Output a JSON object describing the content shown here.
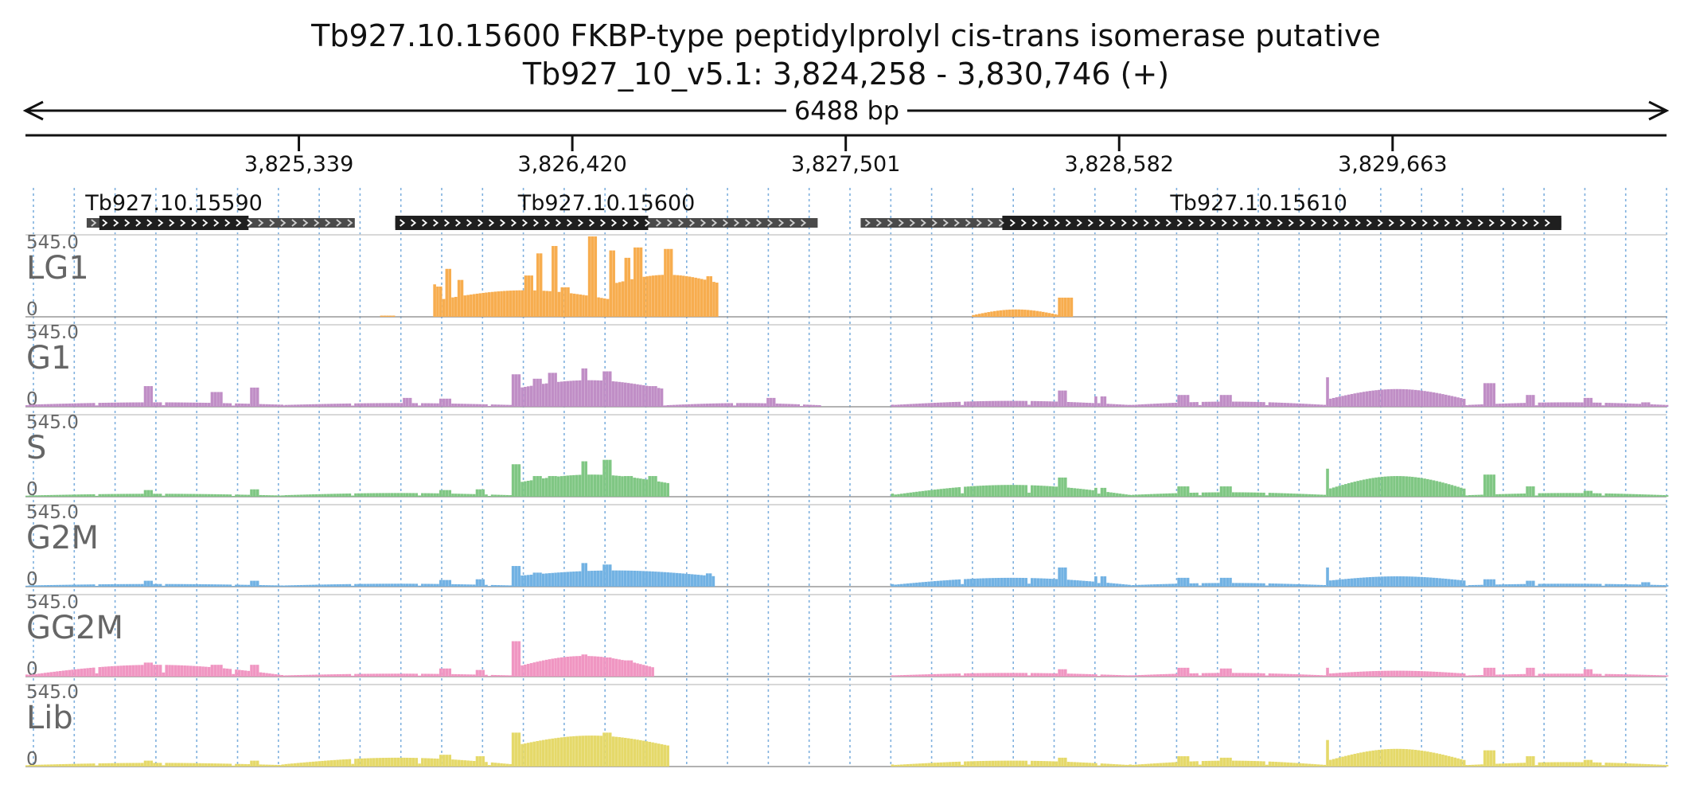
{
  "title": "Tb927.10.15600  FKBP-type peptidylprolyl cis-trans isomerase  putative",
  "subtitle": "Tb927_10_v5.1: 3,824,258 - 3,830,746 (+)",
  "span_label": "6488 bp",
  "colors": {
    "text": "#111111",
    "track_label": "#666666",
    "gene_cds": "#1f1f1f",
    "gene_utr": "#4a4a4a",
    "grid": "#7fb0de",
    "baseline": "#999999"
  },
  "chart_data": {
    "type": "area",
    "region": {
      "start": 3824258,
      "end": 3830746,
      "strand": "+"
    },
    "axis_ticks": [
      {
        "pos": 3825339,
        "label": "3,825,339"
      },
      {
        "pos": 3826420,
        "label": "3,826,420"
      },
      {
        "pos": 3827501,
        "label": "3,827,501"
      },
      {
        "pos": 3828582,
        "label": "3,828,582"
      },
      {
        "pos": 3829663,
        "label": "3,829,663"
      }
    ],
    "genes": [
      {
        "id": "Tb927.10.15590",
        "label": "Tb927.10.15590",
        "start": 3824500,
        "end": 3825560,
        "cds_start": 3824550,
        "cds_end": 3825140
      },
      {
        "id": "Tb927.10.15600",
        "label": "Tb927.10.15600",
        "start": 3825720,
        "end": 3827390,
        "cds_start": 3825720,
        "cds_end": 3826720
      },
      {
        "id": "Tb927.10.15610",
        "label": "Tb927.10.15610",
        "start": 3827560,
        "end": 3830330,
        "cds_start": 3828120,
        "cds_end": 3830330
      }
    ],
    "y_range": [
      0,
      545.0
    ],
    "y_max_label": "545.0",
    "y_min_label": "0",
    "grid": "dotted vertical",
    "tracks": [
      {
        "name": "LG1",
        "color": "#f7ad4f",
        "segments": [
          {
            "start": 3825660,
            "end": 3825720,
            "shape": "flat",
            "lo": 8,
            "hi": 8,
            "edge": 0,
            "gap": 0
          },
          {
            "start": 3825870,
            "end": 3826590,
            "shape": "steps",
            "lo": 110,
            "hi": 180,
            "edge": 220,
            "gap": 0,
            "steps": [
              [
                3825870,
                205
              ],
              [
                3825910,
                325
              ],
              [
                3825960,
                250
              ],
              [
                3826230,
                280
              ],
              [
                3826270,
                430
              ],
              [
                3826330,
                480
              ],
              [
                3826370,
                200
              ],
              [
                3826480,
                550
              ],
              [
                3826560,
                450
              ]
            ]
          },
          {
            "start": 3826590,
            "end": 3826990,
            "shape": "steps",
            "lo": 230,
            "hi": 285,
            "edge": 0,
            "gap": 0,
            "steps": [
              [
                3826620,
                400
              ],
              [
                3826660,
                470
              ],
              [
                3826740,
                270
              ],
              [
                3826780,
                460
              ],
              [
                3826890,
                100
              ],
              [
                3826940,
                275
              ]
            ]
          },
          {
            "start": 3828000,
            "end": 3828340,
            "shape": "hump",
            "lo": 12,
            "hi": 50,
            "edge": 12,
            "gap": 0
          },
          {
            "start": 3828340,
            "end": 3828390,
            "shape": "flat",
            "lo": 130,
            "hi": 130,
            "edge": 130,
            "gap": 0
          }
        ]
      },
      {
        "name": "G1",
        "color": "#c08ec6",
        "segments": [
          {
            "start": 3824258,
            "end": 3825270,
            "shape": "bumps",
            "lo": 14,
            "hi": 30,
            "edge": 30,
            "gap": 40,
            "bumps": [
              [
                3824740,
                140
              ],
              [
                3825010,
                100
              ],
              [
                3825160,
                130
              ]
            ]
          },
          {
            "start": 3825270,
            "end": 3826180,
            "shape": "bumps",
            "lo": 12,
            "hi": 25,
            "edge": 25,
            "gap": 60,
            "bumps": [
              [
                3825760,
                60
              ],
              [
                3825910,
                55
              ]
            ]
          },
          {
            "start": 3826180,
            "end": 3826780,
            "shape": "steps",
            "lo": 120,
            "hi": 180,
            "edge": 200,
            "gap": 0,
            "steps": [
              [
                3826180,
                220
              ],
              [
                3826260,
                190
              ],
              [
                3826320,
                230
              ],
              [
                3826450,
                260
              ],
              [
                3826540,
                240
              ],
              [
                3826620,
                110
              ],
              [
                3826720,
                140
              ]
            ]
          },
          {
            "start": 3826780,
            "end": 3827400,
            "shape": "bumps",
            "lo": 10,
            "hi": 25,
            "edge": 25,
            "gap": 50,
            "bumps": [
              [
                3827200,
                60
              ]
            ]
          },
          {
            "start": 3827680,
            "end": 3828620,
            "shape": "bumps",
            "lo": 12,
            "hi": 40,
            "edge": 40,
            "gap": 40,
            "bumps": [
              [
                3828350,
                110
              ],
              [
                3828500,
                70
              ]
            ]
          },
          {
            "start": 3828620,
            "end": 3829400,
            "shape": "bumps",
            "lo": 12,
            "hi": 35,
            "edge": 35,
            "gap": 60,
            "bumps": [
              [
                3828830,
                80
              ],
              [
                3829000,
                80
              ]
            ]
          },
          {
            "start": 3829400,
            "end": 3829950,
            "shape": "hump",
            "lo": 50,
            "hi": 120,
            "edge": 200,
            "gap": 0
          },
          {
            "start": 3829950,
            "end": 3830746,
            "shape": "bumps",
            "lo": 12,
            "hi": 30,
            "edge": 30,
            "gap": 60,
            "bumps": [
              [
                3830040,
                160
              ],
              [
                3830200,
                80
              ],
              [
                3830430,
                60
              ],
              [
                3830660,
                30
              ]
            ]
          }
        ]
      },
      {
        "name": "S",
        "color": "#80c784",
        "segments": [
          {
            "start": 3824258,
            "end": 3825270,
            "shape": "bumps",
            "lo": 8,
            "hi": 20,
            "edge": 20,
            "gap": 40,
            "bumps": [
              [
                3824740,
                45
              ],
              [
                3825160,
                50
              ]
            ]
          },
          {
            "start": 3825270,
            "end": 3826180,
            "shape": "bumps",
            "lo": 10,
            "hi": 25,
            "edge": 25,
            "gap": 60,
            "bumps": [
              [
                3825910,
                45
              ],
              [
                3826050,
                50
              ]
            ]
          },
          {
            "start": 3826180,
            "end": 3826800,
            "shape": "steps",
            "lo": 90,
            "hi": 150,
            "edge": 200,
            "gap": 0,
            "steps": [
              [
                3826180,
                220
              ],
              [
                3826260,
                140
              ],
              [
                3826320,
                140
              ],
              [
                3826450,
                240
              ],
              [
                3826540,
                250
              ],
              [
                3826620,
                140
              ],
              [
                3826720,
                140
              ]
            ]
          },
          {
            "start": 3827680,
            "end": 3828620,
            "shape": "bumps",
            "lo": 12,
            "hi": 80,
            "edge": 60,
            "gap": 40,
            "bumps": [
              [
                3828350,
                130
              ],
              [
                3828500,
                60
              ]
            ]
          },
          {
            "start": 3828620,
            "end": 3829400,
            "shape": "bumps",
            "lo": 12,
            "hi": 30,
            "edge": 30,
            "gap": 60,
            "bumps": [
              [
                3828830,
                70
              ],
              [
                3829000,
                70
              ]
            ]
          },
          {
            "start": 3829400,
            "end": 3829950,
            "shape": "hump",
            "lo": 50,
            "hi": 140,
            "edge": 190,
            "gap": 0
          },
          {
            "start": 3829950,
            "end": 3830746,
            "shape": "bumps",
            "lo": 10,
            "hi": 25,
            "edge": 25,
            "gap": 60,
            "bumps": [
              [
                3830040,
                150
              ],
              [
                3830200,
                70
              ],
              [
                3830430,
                40
              ]
            ]
          }
        ]
      },
      {
        "name": "G2M",
        "color": "#72b2e3",
        "segments": [
          {
            "start": 3824258,
            "end": 3825270,
            "shape": "bumps",
            "lo": 8,
            "hi": 18,
            "edge": 18,
            "gap": 40,
            "bumps": [
              [
                3824740,
                40
              ],
              [
                3825160,
                40
              ]
            ]
          },
          {
            "start": 3825270,
            "end": 3826180,
            "shape": "bumps",
            "lo": 8,
            "hi": 20,
            "edge": 20,
            "gap": 60,
            "bumps": [
              [
                3825910,
                45
              ],
              [
                3826050,
                50
              ]
            ]
          },
          {
            "start": 3826180,
            "end": 3826980,
            "shape": "steps",
            "lo": 70,
            "hi": 110,
            "edge": 120,
            "gap": 0,
            "steps": [
              [
                3826180,
                140
              ],
              [
                3826260,
                95
              ],
              [
                3826450,
                160
              ],
              [
                3826540,
                150
              ],
              [
                3826720,
                80
              ],
              [
                3826940,
                90
              ]
            ]
          },
          {
            "start": 3827680,
            "end": 3828620,
            "shape": "bumps",
            "lo": 12,
            "hi": 60,
            "edge": 50,
            "gap": 40,
            "bumps": [
              [
                3828350,
                130
              ],
              [
                3828500,
                70
              ]
            ]
          },
          {
            "start": 3828620,
            "end": 3829400,
            "shape": "bumps",
            "lo": 10,
            "hi": 25,
            "edge": 25,
            "gap": 60,
            "bumps": [
              [
                3828830,
                60
              ],
              [
                3829000,
                60
              ]
            ]
          },
          {
            "start": 3829400,
            "end": 3829950,
            "shape": "hump",
            "lo": 40,
            "hi": 70,
            "edge": 130,
            "gap": 0
          },
          {
            "start": 3829950,
            "end": 3830746,
            "shape": "bumps",
            "lo": 10,
            "hi": 20,
            "edge": 20,
            "gap": 60,
            "bumps": [
              [
                3830040,
                50
              ],
              [
                3830200,
                40
              ],
              [
                3830660,
                30
              ]
            ]
          }
        ]
      },
      {
        "name": "GG2M",
        "color": "#f096c2",
        "segments": [
          {
            "start": 3824258,
            "end": 3825270,
            "shape": "bumps",
            "lo": 10,
            "hi": 80,
            "edge": 40,
            "gap": 40,
            "bumps": [
              [
                3824740,
                95
              ],
              [
                3825010,
                80
              ],
              [
                3825160,
                80
              ]
            ]
          },
          {
            "start": 3825270,
            "end": 3826180,
            "shape": "bumps",
            "lo": 8,
            "hi": 20,
            "edge": 20,
            "gap": 60,
            "bumps": [
              [
                3825910,
                55
              ],
              [
                3826050,
                45
              ]
            ]
          },
          {
            "start": 3826180,
            "end": 3826740,
            "shape": "steps",
            "lo": 60,
            "hi": 140,
            "edge": 240,
            "gap": 0,
            "steps": [
              [
                3826180,
                240
              ],
              [
                3826240,
                60
              ],
              [
                3826450,
                150
              ],
              [
                3826540,
                130
              ],
              [
                3826620,
                110
              ]
            ]
          },
          {
            "start": 3827680,
            "end": 3828620,
            "shape": "bumps",
            "lo": 8,
            "hi": 25,
            "edge": 25,
            "gap": 40,
            "bumps": [
              [
                3828350,
                50
              ]
            ]
          },
          {
            "start": 3828620,
            "end": 3829400,
            "shape": "bumps",
            "lo": 8,
            "hi": 25,
            "edge": 25,
            "gap": 60,
            "bumps": [
              [
                3828830,
                60
              ],
              [
                3829000,
                55
              ]
            ]
          },
          {
            "start": 3829400,
            "end": 3829950,
            "shape": "hump",
            "lo": 20,
            "hi": 40,
            "edge": 60,
            "gap": 0
          },
          {
            "start": 3829950,
            "end": 3830746,
            "shape": "bumps",
            "lo": 8,
            "hi": 20,
            "edge": 20,
            "gap": 60,
            "bumps": [
              [
                3830040,
                60
              ],
              [
                3830200,
                60
              ],
              [
                3830430,
                50
              ]
            ]
          }
        ]
      },
      {
        "name": "Lib",
        "color": "#e5d96a",
        "segments": [
          {
            "start": 3824258,
            "end": 3825270,
            "shape": "bumps",
            "lo": 10,
            "hi": 25,
            "edge": 25,
            "gap": 40,
            "bumps": [
              [
                3824740,
                40
              ],
              [
                3825160,
                40
              ]
            ]
          },
          {
            "start": 3825270,
            "end": 3826180,
            "shape": "bumps",
            "lo": 15,
            "hi": 60,
            "edge": 40,
            "gap": 60,
            "bumps": [
              [
                3825910,
                80
              ],
              [
                3826050,
                70
              ]
            ]
          },
          {
            "start": 3826180,
            "end": 3826800,
            "shape": "steps",
            "lo": 140,
            "hi": 210,
            "edge": 220,
            "gap": 0,
            "steps": [
              [
                3826180,
                230
              ],
              [
                3826260,
                160
              ],
              [
                3826320,
                170
              ],
              [
                3826450,
                200
              ],
              [
                3826540,
                230
              ],
              [
                3826620,
                150
              ],
              [
                3826720,
                150
              ]
            ]
          },
          {
            "start": 3827680,
            "end": 3828620,
            "shape": "bumps",
            "lo": 10,
            "hi": 40,
            "edge": 40,
            "gap": 40,
            "bumps": [
              [
                3828350,
                60
              ]
            ]
          },
          {
            "start": 3828620,
            "end": 3829400,
            "shape": "bumps",
            "lo": 10,
            "hi": 40,
            "edge": 40,
            "gap": 60,
            "bumps": [
              [
                3828830,
                70
              ],
              [
                3829000,
                60
              ]
            ]
          },
          {
            "start": 3829400,
            "end": 3829950,
            "shape": "hump",
            "lo": 40,
            "hi": 120,
            "edge": 180,
            "gap": 0
          },
          {
            "start": 3829950,
            "end": 3830746,
            "shape": "bumps",
            "lo": 10,
            "hi": 30,
            "edge": 30,
            "gap": 60,
            "bumps": [
              [
                3830040,
                110
              ],
              [
                3830200,
                70
              ],
              [
                3830430,
                45
              ]
            ]
          }
        ]
      }
    ]
  }
}
